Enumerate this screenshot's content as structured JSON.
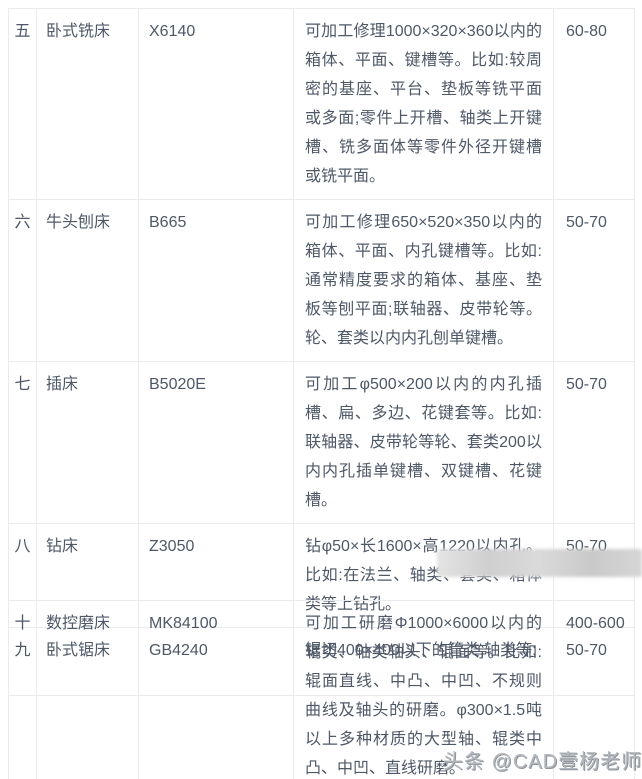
{
  "table1": {
    "rows": [
      {
        "no": "五",
        "machine": "卧式铣床",
        "model": "X6140",
        "desc": "可加工修理1000×320×360以内的箱体、平面、键槽等。比如:较周密的基座、平台、垫板等铣平面或多面;零件上开槽、轴类上开键槽、铣多面体等零件外径开键槽或铣平面。",
        "rate": "60-80"
      },
      {
        "no": "六",
        "machine": "牛头刨床",
        "model": "B665",
        "desc": "可加工修理650×520×350以内的箱体、平面、内孔键槽等。比如:通常精度要求的箱体、基座、垫板等刨平面;联轴器、皮带轮等。轮、套类以内内孔刨单键槽。",
        "rate": "50-70"
      },
      {
        "no": "七",
        "machine": "插床",
        "model": "B5020E",
        "desc": "可加工φ500×200以内的内孔插槽、扁、多边、花键套等。比如:联轴器、皮带轮等轮、套类200以内内孔插单键槽、双键槽、花键槽。",
        "rate": "50-70"
      },
      {
        "no": "八",
        "machine": "钻床",
        "model": "Z3050",
        "desc": "钻φ50×长1600×高1220以内孔。比如:在法兰、轴类、套类、箱体类等上钻孔。",
        "rate": "50-70"
      },
      {
        "no": "九",
        "machine": "卧式锯床",
        "model": "GB4240",
        "desc": "锯切400×400以下的管类,轴类等;",
        "rate": "50-70"
      }
    ]
  },
  "table2": {
    "rows": [
      {
        "no": "十",
        "machine": "数控磨床",
        "model": "MK84100",
        "desc": "可加工研磨Φ1000×6000以内的辊类、轴类轴头、辊面等。比如:辊面直线、中凸、中凹、不规则曲线及轴头的研磨。φ300×1.5吨以上多种材质的大型轴、辊类中凸、中凹、直线研磨。",
        "rate": "400-600"
      }
    ]
  },
  "watermark": {
    "text": "头条 @CAD壹杨老师"
  }
}
